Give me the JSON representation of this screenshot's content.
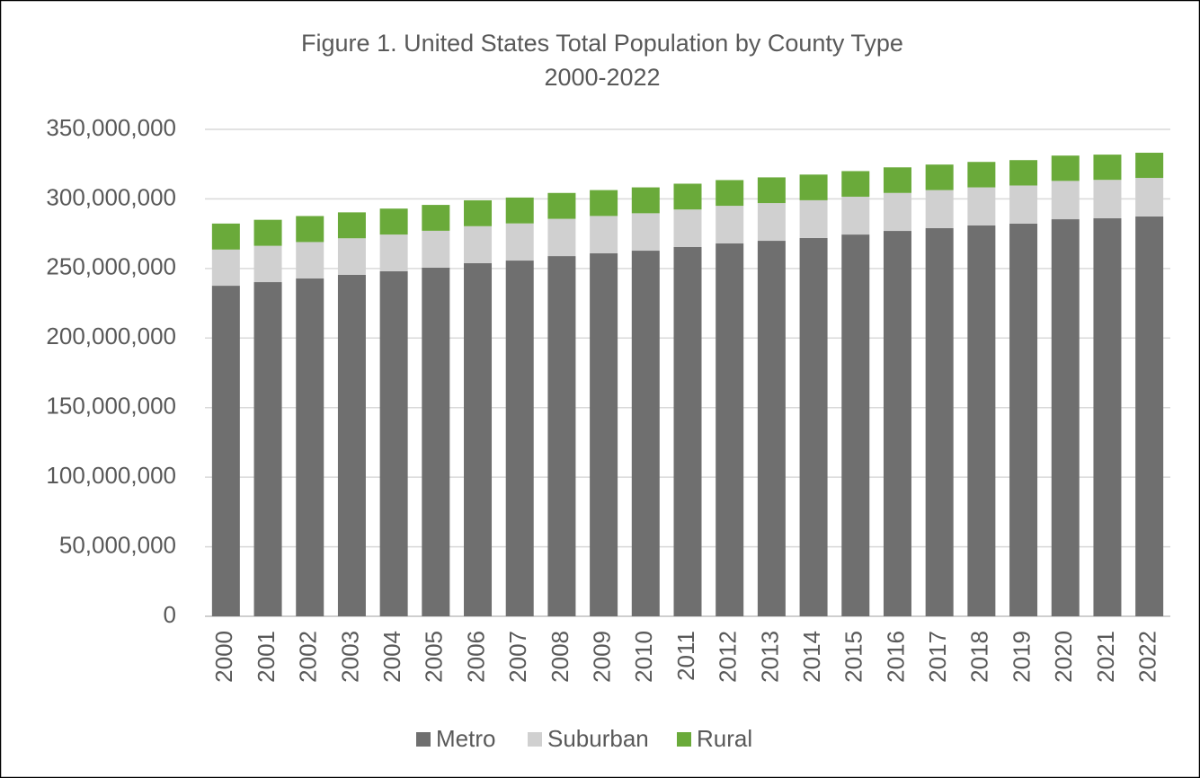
{
  "chart_data": {
    "type": "stacked_bar",
    "title": "Figure 1. United States Total Population by County Type",
    "subtitle": "2000-2022",
    "categories": [
      "2000",
      "2001",
      "2002",
      "2003",
      "2004",
      "2005",
      "2006",
      "2007",
      "2008",
      "2009",
      "2010",
      "2011",
      "2012",
      "2013",
      "2014",
      "2015",
      "2016",
      "2017",
      "2018",
      "2019",
      "2020",
      "2021",
      "2022"
    ],
    "series": [
      {
        "name": "Metro",
        "color": "#6f6f6f",
        "values": [
          237600000,
          240200000,
          242800000,
          245400000,
          248000000,
          250600000,
          253800000,
          255700000,
          258900000,
          260900000,
          262800000,
          265400000,
          268000000,
          269900000,
          271900000,
          274400000,
          277000000,
          279000000,
          280900000,
          282200000,
          285400000,
          286100000,
          287400000
        ]
      },
      {
        "name": "Suburban",
        "color": "#d0d0d0",
        "values": [
          26000000,
          26100000,
          26200000,
          26300000,
          26400000,
          26500000,
          26600000,
          26700000,
          26800000,
          26850000,
          26900000,
          27000000,
          27050000,
          27100000,
          27150000,
          27200000,
          27300000,
          27350000,
          27400000,
          27450000,
          27550000,
          27600000,
          27700000
        ]
      },
      {
        "name": "Rural",
        "color": "#6aaa3a",
        "values": [
          18700000,
          18700000,
          18700000,
          18650000,
          18650000,
          18600000,
          18600000,
          18600000,
          18600000,
          18600000,
          18600000,
          18550000,
          18500000,
          18500000,
          18450000,
          18400000,
          18400000,
          18350000,
          18300000,
          18250000,
          18200000,
          18150000,
          18100000
        ]
      }
    ],
    "ylim": [
      0,
      350000000
    ],
    "yticks": [
      0,
      {
        "value": 50000000,
        "label": "50,000,000"
      },
      {
        "value": 100000000,
        "label": "100,000,000"
      },
      {
        "value": 150000000,
        "label": "150,000,000"
      },
      {
        "value": 200000000,
        "label": "200,000,000"
      },
      {
        "value": 250000000,
        "label": "250,000,000"
      },
      {
        "value": 300000000,
        "label": "300,000,000"
      },
      {
        "value": 350000000,
        "label": "350,000,000"
      }
    ],
    "grid": true,
    "legend": "bottom"
  }
}
